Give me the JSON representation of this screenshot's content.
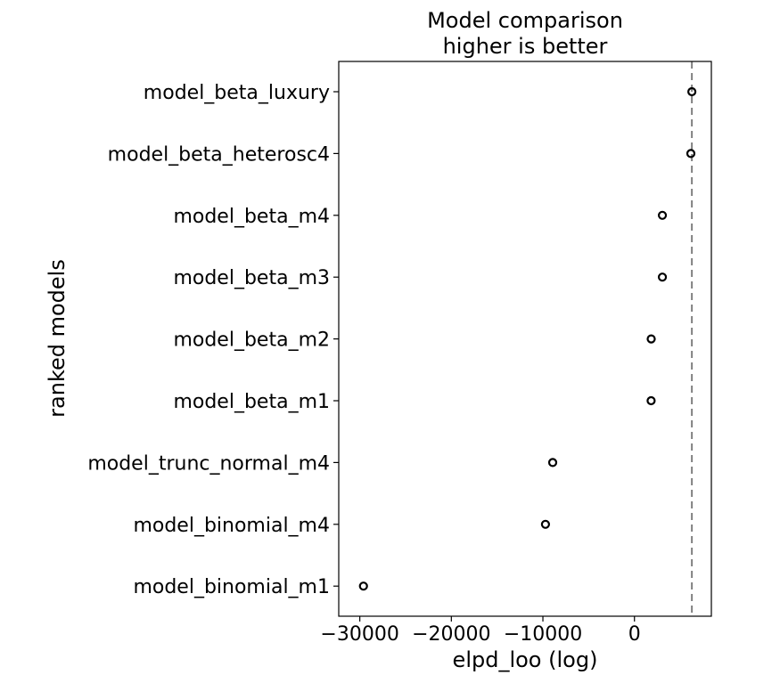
{
  "chart_data": {
    "type": "scatter",
    "title_line1": "Model comparison",
    "title_line2": "higher is better",
    "xlabel": "elpd_loo (log)",
    "ylabel": "ranked models",
    "xlim": [
      -32300,
      8400
    ],
    "xticks": [
      -30000,
      -20000,
      -10000,
      0
    ],
    "xtick_labels": [
      "−30000",
      "−20000",
      "−10000",
      "0"
    ],
    "categories": [
      "model_beta_luxury",
      "model_beta_heterosc4",
      "model_beta_m4",
      "model_beta_m3",
      "model_beta_m2",
      "model_beta_m1",
      "model_trunc_normal_m4",
      "model_binomial_m4",
      "model_binomial_m1"
    ],
    "values": [
      6270,
      6160,
      3050,
      3050,
      1830,
      1820,
      -8930,
      -9720,
      -29600
    ],
    "reference_line": 6270,
    "reference_line_style": "dashed",
    "reference_line_color": "#808080",
    "marker_color": "#000000",
    "marker_style": "open-circle",
    "grid": false
  }
}
